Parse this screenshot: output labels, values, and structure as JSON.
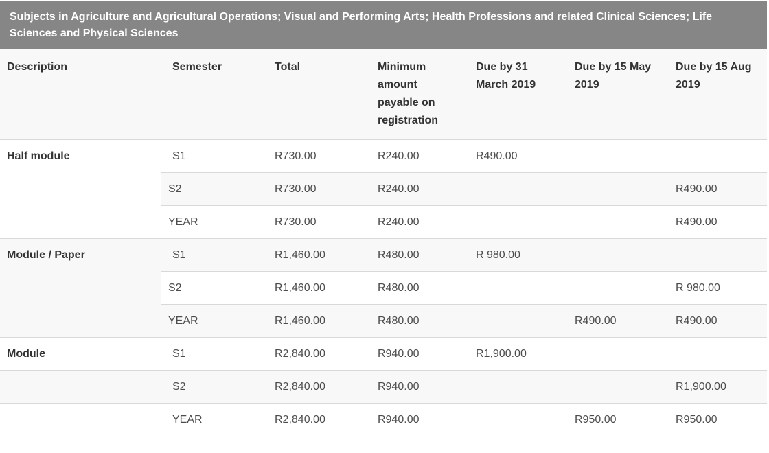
{
  "title_bar": {
    "text": "Subjects in Agriculture and Agricultural Operations; Visual and Performing Arts; Health Professions and related Clinical Sciences; Life Sciences and Physical Sciences"
  },
  "colors": {
    "banner_background": "#868686",
    "banner_text": "#ffffff",
    "header_background": "#f8f8f8",
    "row_stripe": "#f8f8f8",
    "row_border": "#d9d9d9",
    "body_text": "#4d4d4d",
    "heading_text": "#333333"
  },
  "table": {
    "columns": [
      "Description",
      "Semester",
      "Total",
      "Minimum amount payable on registration",
      "Due by 31 March 2019",
      "Due by 15 May 2019",
      "Due by 15 Aug 2019"
    ],
    "rows": [
      {
        "description": "Half module",
        "semester": "S1",
        "total": "R730.00",
        "min": "R240.00",
        "due_march": "R490.00",
        "due_may": "",
        "due_aug": ""
      },
      {
        "description": "",
        "semester": "S2",
        "total": "R730.00",
        "min": "R240.00",
        "due_march": "",
        "due_may": "",
        "due_aug": "R490.00"
      },
      {
        "description": "",
        "semester": "YEAR",
        "total": "R730.00",
        "min": "R240.00",
        "due_march": "",
        "due_may": "",
        "due_aug": "R490.00"
      },
      {
        "description": "Module / Paper",
        "semester": "S1",
        "total": "R1,460.00",
        "min": "R480.00",
        "due_march": "R 980.00",
        "due_may": "",
        "due_aug": ""
      },
      {
        "description": "",
        "semester": "S2",
        "total": "R1,460.00",
        "min": "R480.00",
        "due_march": "",
        "due_may": "",
        "due_aug": "R 980.00"
      },
      {
        "description": "",
        "semester": "YEAR",
        "total": "R1,460.00",
        "min": "R480.00",
        "due_march": "",
        "due_may": "R490.00",
        "due_aug": "R490.00"
      },
      {
        "description": "Module",
        "semester": "S1",
        "total": "R2,840.00",
        "min": "R940.00",
        "due_march": "R1,900.00",
        "due_may": "",
        "due_aug": ""
      },
      {
        "description": "",
        "semester": "S2",
        "total": "R2,840.00",
        "min": "R940.00",
        "due_march": "",
        "due_may": "",
        "due_aug": "R1,900.00"
      },
      {
        "description": "",
        "semester": "YEAR",
        "total": "R2,840.00",
        "min": "R940.00",
        "due_march": "",
        "due_may": "R950.00",
        "due_aug": "R950.00"
      }
    ]
  }
}
